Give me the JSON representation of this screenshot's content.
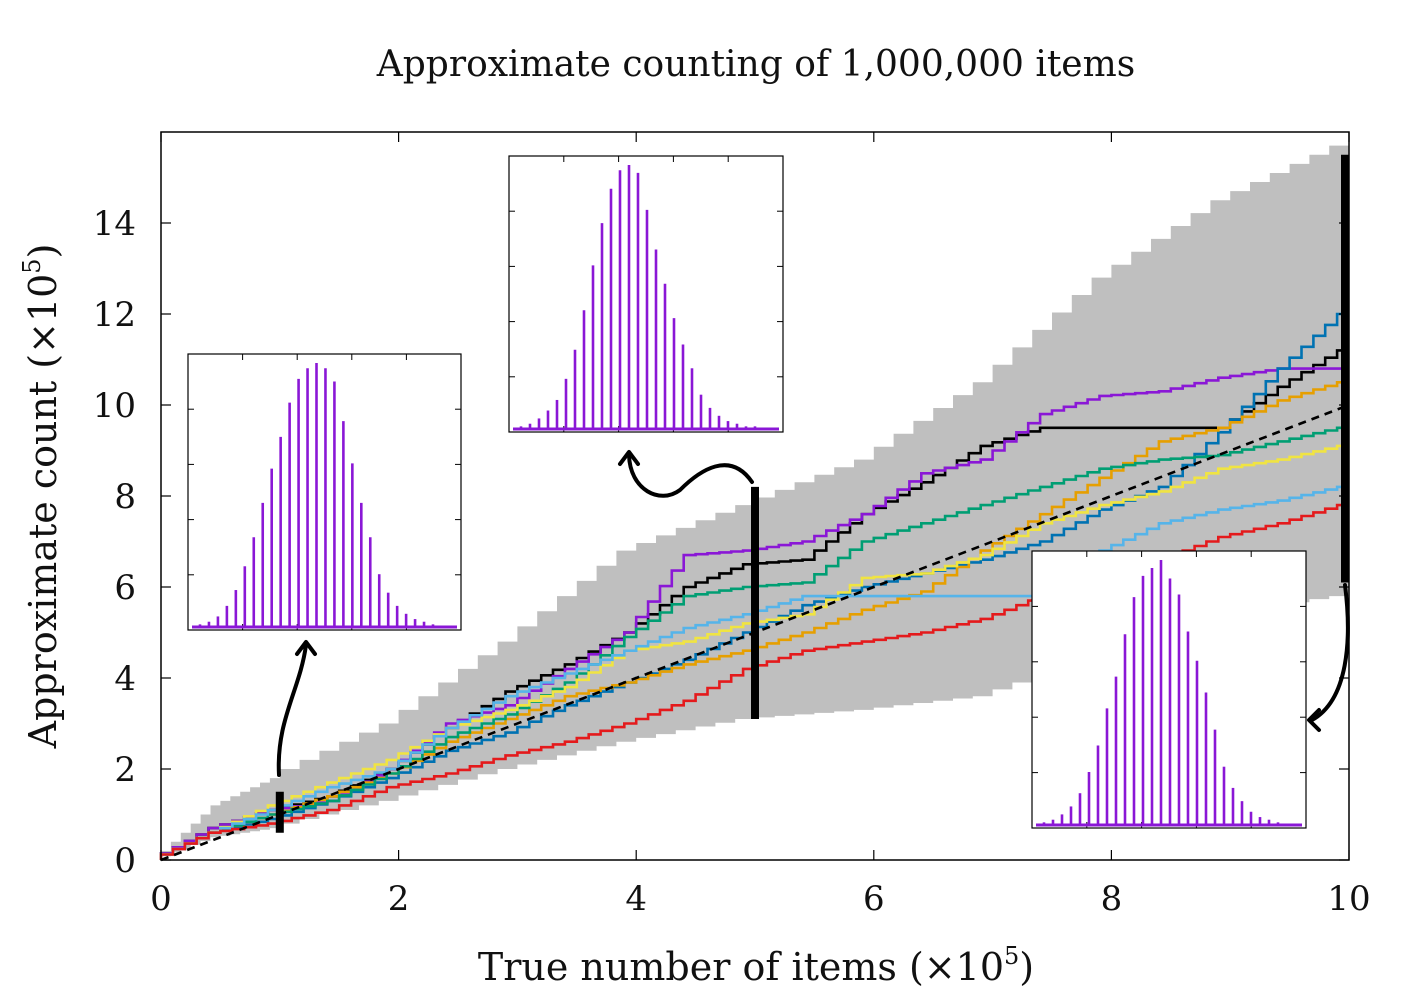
{
  "chart_data": {
    "type": "line",
    "title": "Approximate counting of 1,000,000 items",
    "xlabel": "True number of items (×10",
    "xlabel_sup": "5",
    "xlabel_close": ")",
    "ylabel": "Approximate count  (×10",
    "ylabel_sup": "5",
    "ylabel_close": ")",
    "xlim": [
      0,
      10
    ],
    "ylim": [
      0,
      16
    ],
    "xticks": [
      0,
      2,
      4,
      6,
      8,
      10
    ],
    "yticks": [
      0,
      2,
      4,
      6,
      8,
      10,
      12,
      14
    ],
    "grid": false,
    "band": {
      "x": [
        0,
        0.5,
        1,
        2,
        3,
        4,
        5,
        6,
        7,
        8,
        9,
        10
      ],
      "upper": [
        0,
        1.2,
        1.8,
        3.0,
        4.8,
        6.8,
        7.8,
        8.8,
        10.5,
        12.8,
        14.5,
        15.7
      ],
      "lower": [
        0,
        0.5,
        0.7,
        1.3,
        2.0,
        2.6,
        3.1,
        3.3,
        3.6,
        4.5,
        5.4,
        5.8
      ],
      "color": "#bfbfbf"
    },
    "expected_line": {
      "x": [
        0,
        10
      ],
      "y": [
        0,
        10
      ],
      "style": "dashed",
      "color": "#000000"
    },
    "series": [
      {
        "color": "#000000",
        "x": [
          0,
          0.5,
          1,
          1.5,
          2,
          2.5,
          3,
          3.5,
          4,
          4.5,
          5,
          5.5,
          6,
          6.5,
          7,
          7.5,
          8,
          8.5,
          9,
          9.5,
          10
        ],
        "y": [
          0,
          0.7,
          1.1,
          1.4,
          2.0,
          2.9,
          3.7,
          4.3,
          5.0,
          6.0,
          6.5,
          6.6,
          7.6,
          8.3,
          9.1,
          9.5,
          9.5,
          9.5,
          9.5,
          10.4,
          11.2
        ]
      },
      {
        "color": "#8a17d6",
        "x": [
          0,
          0.5,
          1,
          1.5,
          2,
          2.5,
          3,
          3.5,
          4,
          4.5,
          5,
          5.5,
          6,
          6.5,
          7,
          7.5,
          8,
          8.5,
          9,
          9.5,
          10
        ],
        "y": [
          0,
          0.7,
          1.1,
          1.3,
          2.0,
          3.0,
          3.4,
          4.2,
          5.0,
          6.7,
          6.8,
          7.0,
          7.6,
          8.5,
          8.8,
          9.8,
          10.2,
          10.3,
          10.6,
          10.8,
          10.8
        ]
      },
      {
        "color": "#0072b2",
        "x": [
          0,
          0.5,
          1,
          1.5,
          2,
          2.5,
          3,
          3.5,
          4,
          4.5,
          5,
          5.5,
          6,
          6.5,
          7,
          7.5,
          8,
          8.5,
          9,
          9.5,
          10
        ],
        "y": [
          0,
          0.6,
          0.9,
          1.3,
          1.8,
          2.4,
          2.8,
          3.4,
          3.9,
          4.4,
          5.0,
          5.6,
          6.0,
          6.3,
          6.6,
          7.0,
          7.7,
          8.2,
          9.4,
          10.8,
          12.0
        ]
      },
      {
        "color": "#e69f00",
        "x": [
          0,
          0.5,
          1,
          1.5,
          2,
          2.5,
          3,
          3.5,
          4,
          4.5,
          5,
          5.5,
          6,
          6.5,
          7,
          7.5,
          8,
          8.5,
          9,
          9.5,
          10
        ],
        "y": [
          0,
          0.6,
          1.0,
          1.4,
          1.9,
          2.6,
          3.1,
          3.6,
          3.9,
          4.3,
          4.6,
          5.0,
          5.5,
          5.9,
          6.8,
          7.6,
          8.4,
          9.2,
          9.5,
          10.1,
          10.5
        ]
      },
      {
        "color": "#009e73",
        "x": [
          0,
          0.5,
          1,
          1.5,
          2,
          2.5,
          3,
          3.5,
          4,
          4.5,
          5,
          5.5,
          6,
          6.5,
          7,
          7.5,
          8,
          8.5,
          9,
          9.5,
          10
        ],
        "y": [
          0,
          0.6,
          1.0,
          1.3,
          1.9,
          2.7,
          3.2,
          3.9,
          4.9,
          5.8,
          6.0,
          6.1,
          7.0,
          7.4,
          7.8,
          8.2,
          8.6,
          8.8,
          8.9,
          9.2,
          9.5
        ]
      },
      {
        "color": "#f0e442",
        "x": [
          0,
          0.5,
          1,
          1.5,
          2,
          2.5,
          3,
          3.5,
          4,
          4.5,
          5,
          5.5,
          6,
          6.5,
          7,
          7.5,
          8,
          8.5,
          9,
          9.5,
          10
        ],
        "y": [
          0,
          0.6,
          1.2,
          1.7,
          2.2,
          2.9,
          3.3,
          3.8,
          4.6,
          4.8,
          5.2,
          5.4,
          6.2,
          6.3,
          6.7,
          7.4,
          7.8,
          8.1,
          8.6,
          8.8,
          9.1
        ]
      },
      {
        "color": "#56b4e9",
        "x": [
          0,
          0.5,
          1,
          1.5,
          2,
          2.5,
          3,
          3.5,
          4,
          4.5,
          5,
          5.5,
          6,
          6.5,
          7,
          7.5,
          8,
          8.5,
          9,
          9.5,
          10
        ],
        "y": [
          0,
          0.6,
          1.1,
          1.6,
          2.0,
          2.9,
          3.6,
          4.1,
          4.6,
          5.1,
          5.4,
          5.8,
          5.8,
          5.8,
          5.8,
          5.8,
          6.8,
          7.4,
          7.7,
          7.9,
          8.2
        ]
      },
      {
        "color": "#e41a1c",
        "x": [
          0,
          0.5,
          1,
          1.5,
          2,
          2.5,
          3,
          3.5,
          4,
          4.5,
          5,
          5.5,
          6,
          6.5,
          7,
          7.5,
          8,
          8.5,
          9,
          9.5,
          10
        ],
        "y": [
          0,
          0.6,
          0.8,
          1.1,
          1.6,
          1.9,
          2.3,
          2.6,
          3.0,
          3.5,
          4.2,
          4.6,
          4.8,
          5.0,
          5.3,
          5.8,
          6.2,
          6.6,
          7.1,
          7.4,
          7.8
        ]
      }
    ],
    "markers": [
      {
        "x": 1,
        "y0": 0.6,
        "y1": 1.5
      },
      {
        "x": 5,
        "y0": 3.1,
        "y1": 8.2
      },
      {
        "x": 10,
        "y0": 6.1,
        "y1": 15.5
      }
    ],
    "insets": [
      {
        "type": "bar",
        "color": "#8a17d6",
        "values": [
          0.01,
          0.02,
          0.04,
          0.08,
          0.14,
          0.23,
          0.34,
          0.47,
          0.6,
          0.72,
          0.85,
          0.94,
          0.98,
          1.0,
          0.98,
          0.93,
          0.78,
          0.62,
          0.47,
          0.34,
          0.2,
          0.13,
          0.08,
          0.05,
          0.03,
          0.02,
          0.01
        ]
      },
      {
        "type": "bar",
        "color": "#8a17d6",
        "values": [
          0.01,
          0.02,
          0.04,
          0.07,
          0.11,
          0.19,
          0.3,
          0.45,
          0.62,
          0.78,
          0.91,
          0.98,
          1.0,
          0.97,
          0.83,
          0.68,
          0.55,
          0.42,
          0.32,
          0.23,
          0.13,
          0.08,
          0.05,
          0.03,
          0.02,
          0.01,
          0.01
        ]
      },
      {
        "type": "bar",
        "color": "#8a17d6",
        "values": [
          0.01,
          0.02,
          0.04,
          0.07,
          0.12,
          0.2,
          0.3,
          0.44,
          0.56,
          0.72,
          0.86,
          0.94,
          0.97,
          1.0,
          0.93,
          0.87,
          0.73,
          0.62,
          0.5,
          0.36,
          0.22,
          0.14,
          0.09,
          0.05,
          0.03,
          0.02,
          0.01
        ]
      }
    ]
  }
}
